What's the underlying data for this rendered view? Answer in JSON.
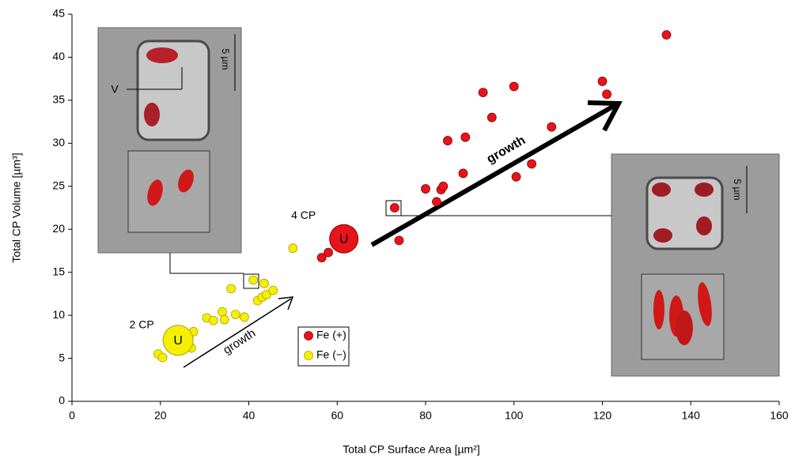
{
  "chart_data": {
    "type": "scatter",
    "x_label": "Total CP Surface Area [µm²]",
    "y_label": "Total CP Volume [µm³]",
    "xlim": [
      0,
      160
    ],
    "xticks": [
      0,
      20,
      40,
      60,
      80,
      100,
      120,
      140,
      160
    ],
    "ylim": [
      0,
      45
    ],
    "yticks": [
      0,
      5,
      10,
      15,
      20,
      25,
      30,
      35,
      40,
      45
    ],
    "series": [
      {
        "name": "Fe (+)",
        "color": "#e8141b",
        "x": [
          56.5,
          58,
          73,
          74,
          80,
          82.5,
          83.5,
          84,
          85,
          88.5,
          89,
          93,
          95,
          100,
          100.5,
          104,
          108.5,
          120,
          121,
          134.5
        ],
        "values": [
          16.7,
          17.3,
          22.5,
          18.7,
          24.7,
          23.2,
          24.6,
          25,
          30.3,
          26.5,
          30.7,
          35.9,
          33,
          36.6,
          26.1,
          27.6,
          31.9,
          37.2,
          35.7,
          42.6
        ]
      },
      {
        "name": "Fe (−)",
        "color": "#f5f000",
        "x": [
          19.5,
          20.5,
          27,
          27.5,
          30.5,
          32,
          34,
          34.5,
          36,
          37,
          39,
          41,
          42,
          43,
          43.5,
          44,
          45.5,
          50
        ],
        "values": [
          5.5,
          5.1,
          6.2,
          8.1,
          9.7,
          9.4,
          10.4,
          9.5,
          13.1,
          10.1,
          9.8,
          14.1,
          11.7,
          12.1,
          13.7,
          12.4,
          12.9,
          17.8
        ]
      }
    ],
    "mean_points": [
      {
        "label": "U",
        "name": "2 CP",
        "x": 24,
        "y": 7.1,
        "color": "#f5f000"
      },
      {
        "label": "U",
        "name": "4 CP",
        "x": 61.5,
        "y": 18.9,
        "color": "#e8141b"
      }
    ],
    "annotations": [
      "growth",
      "growth",
      "V",
      "5 µm",
      "5 µm"
    ]
  }
}
